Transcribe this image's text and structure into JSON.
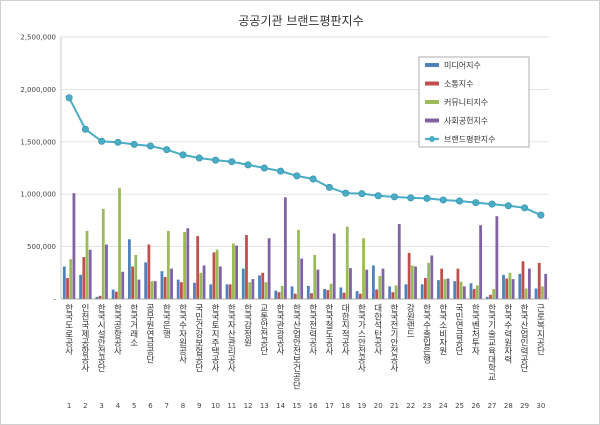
{
  "chart_data": {
    "type": "bar",
    "title": "공공기관 브랜드평판지수",
    "xlabel": "",
    "ylabel": "",
    "ylim": [
      0,
      2500000
    ],
    "yticks": [
      0,
      500000,
      1000000,
      1500000,
      2000000,
      2500000
    ],
    "ytick_labels": [
      "-",
      "500,000",
      "1,000,000",
      "1,500,000",
      "2,000,000",
      "2,500,000"
    ],
    "grid": true,
    "legend_position": "top-right",
    "categories": [
      "한국도로공사",
      "인천국제공항공사",
      "한국시설안전공단",
      "한국공항공사",
      "한국거래소",
      "공무원연금공단",
      "한국은행",
      "한국수자원공사",
      "국민건강보험공단",
      "한국토지주택공사",
      "한국자산관리공사",
      "한국감정원",
      "교통안전공단",
      "한국관광공사",
      "한국산업안전보건공단",
      "한국전력공사",
      "한국철도공사",
      "대한지적공사",
      "한국가스안전공사",
      "대한석탄공사",
      "한국전기안전공사",
      "강원랜드",
      "한국수출입은행",
      "한국소비자원",
      "국민연금공단",
      "한국벤처투자",
      "한국기술교육대학교",
      "한국수력원자력",
      "한국산업인력공단",
      "근로복지공단"
    ],
    "category_numbers": [
      "1",
      "2",
      "3",
      "4",
      "5",
      "6",
      "7",
      "8",
      "9",
      "10",
      "11",
      "12",
      "13",
      "14",
      "15",
      "16",
      "17",
      "18",
      "19",
      "20",
      "21",
      "22",
      "23",
      "24",
      "25",
      "26",
      "27",
      "28",
      "29",
      "30"
    ],
    "series": [
      {
        "name": "미디어지수",
        "type": "bar",
        "color": "#4f81bd",
        "values": [
          310000,
          230000,
          20000,
          90000,
          570000,
          350000,
          265000,
          185000,
          155000,
          140000,
          140000,
          290000,
          225000,
          80000,
          120000,
          125000,
          95000,
          110000,
          75000,
          320000,
          120000,
          140000,
          140000,
          180000,
          170000,
          150000,
          20000,
          230000,
          240000,
          100000
        ]
      },
      {
        "name": "소통지수",
        "type": "bar",
        "color": "#c0504d",
        "values": [
          200000,
          400000,
          30000,
          70000,
          310000,
          520000,
          210000,
          160000,
          600000,
          445000,
          140000,
          610000,
          250000,
          65000,
          50000,
          55000,
          85000,
          60000,
          50000,
          90000,
          65000,
          440000,
          200000,
          290000,
          290000,
          95000,
          40000,
          195000,
          360000,
          345000
        ]
      },
      {
        "name": "커뮤니티지수",
        "type": "bar",
        "color": "#9bbb59",
        "values": [
          380000,
          650000,
          860000,
          1060000,
          420000,
          170000,
          650000,
          640000,
          250000,
          470000,
          530000,
          160000,
          160000,
          125000,
          660000,
          420000,
          145000,
          690000,
          580000,
          220000,
          130000,
          320000,
          345000,
          190000,
          165000,
          130000,
          95000,
          250000,
          100000,
          120000
        ]
      },
      {
        "name": "사회공헌지수",
        "type": "bar",
        "color": "#8064a2",
        "values": [
          1010000,
          470000,
          520000,
          260000,
          185000,
          170000,
          290000,
          675000,
          320000,
          310000,
          510000,
          190000,
          580000,
          970000,
          385000,
          280000,
          625000,
          295000,
          280000,
          290000,
          715000,
          310000,
          415000,
          195000,
          120000,
          705000,
          790000,
          190000,
          290000,
          240000
        ]
      },
      {
        "name": "브랜드평판지수",
        "type": "line",
        "color": "#4bacc6",
        "values": [
          1920000,
          1620000,
          1505000,
          1495000,
          1475000,
          1460000,
          1425000,
          1375000,
          1345000,
          1325000,
          1310000,
          1280000,
          1250000,
          1220000,
          1175000,
          1145000,
          1065000,
          1010000,
          1005000,
          985000,
          975000,
          965000,
          960000,
          945000,
          935000,
          920000,
          905000,
          890000,
          870000,
          800000
        ]
      }
    ]
  }
}
